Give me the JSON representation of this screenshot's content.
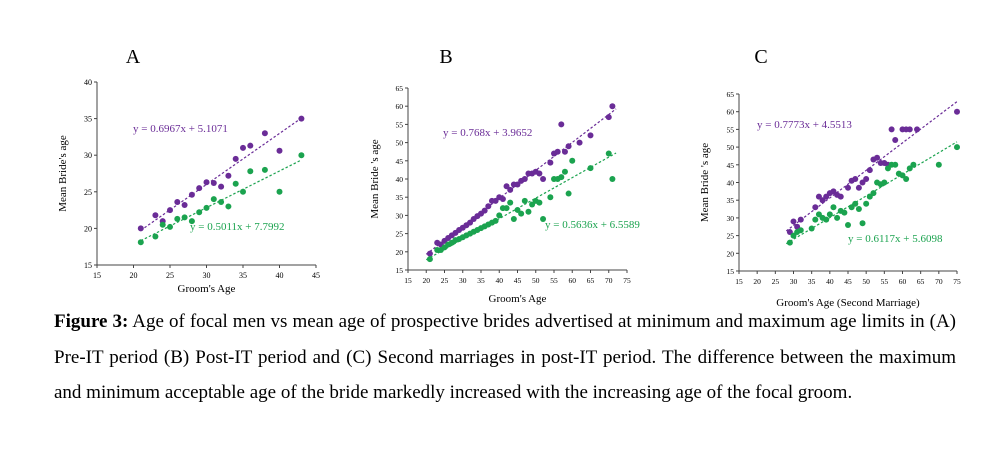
{
  "chart_data": [
    {
      "type": "scatter",
      "panel_label": "A",
      "xlabel": "Groom's Age",
      "ylabel": "Mean Bride's age",
      "xlim": [
        15,
        45
      ],
      "ylim": [
        15,
        40
      ],
      "xticks": [
        15,
        20,
        25,
        30,
        35,
        40,
        45
      ],
      "yticks": [
        15,
        20,
        25,
        30,
        35,
        40
      ],
      "series": [
        {
          "role": "maximum",
          "color": "#6a2c97",
          "equation": "y = 0.6967x + 5.1071",
          "slope": 0.6967,
          "intercept": 5.1071,
          "fit_x": [
            21,
            43
          ],
          "points": [
            [
              21,
              20
            ],
            [
              23,
              21.8
            ],
            [
              24,
              21
            ],
            [
              25,
              22.5
            ],
            [
              26,
              23.6
            ],
            [
              27,
              23.2
            ],
            [
              28,
              24.6
            ],
            [
              29,
              25.5
            ],
            [
              30,
              26.3
            ],
            [
              31,
              26.2
            ],
            [
              32,
              25.7
            ],
            [
              33,
              27.2
            ],
            [
              34,
              29.5
            ],
            [
              35,
              31
            ],
            [
              36,
              31.3
            ],
            [
              38,
              33
            ],
            [
              40,
              30.6
            ],
            [
              43,
              35
            ]
          ]
        },
        {
          "role": "minimum",
          "color": "#1ba34f",
          "equation": "y = 0.5011x + 7.7992",
          "slope": 0.5011,
          "intercept": 7.7992,
          "fit_x": [
            21,
            43
          ],
          "points": [
            [
              21,
              18.1
            ],
            [
              23,
              18.9
            ],
            [
              24,
              20.5
            ],
            [
              25,
              20.2
            ],
            [
              26,
              21.3
            ],
            [
              27,
              21.5
            ],
            [
              28,
              21
            ],
            [
              29,
              22.2
            ],
            [
              30,
              22.8
            ],
            [
              31,
              24
            ],
            [
              32,
              23.6
            ],
            [
              33,
              23
            ],
            [
              34,
              26.1
            ],
            [
              35,
              25
            ],
            [
              36,
              27.8
            ],
            [
              38,
              28
            ],
            [
              40,
              25
            ],
            [
              43,
              30
            ]
          ]
        }
      ]
    },
    {
      "type": "scatter",
      "panel_label": "B",
      "xlabel": "Groom's Age",
      "ylabel": "Mean Bride 's age",
      "xlim": [
        15,
        75
      ],
      "ylim": [
        15,
        65
      ],
      "xticks": [
        15,
        20,
        25,
        30,
        35,
        40,
        45,
        50,
        55,
        60,
        65,
        70,
        75
      ],
      "yticks": [
        15,
        20,
        25,
        30,
        35,
        40,
        45,
        50,
        55,
        60,
        65
      ],
      "series": [
        {
          "role": "maximum",
          "color": "#6a2c97",
          "equation": "y = 0.768x + 3.9652",
          "slope": 0.768,
          "intercept": 3.9652,
          "fit_x": [
            20,
            72
          ],
          "points": [
            [
              21,
              19.5
            ],
            [
              23,
              22.5
            ],
            [
              24,
              22
            ],
            [
              25,
              23
            ],
            [
              26,
              23.8
            ],
            [
              27,
              24.5
            ],
            [
              28,
              25.2
            ],
            [
              29,
              26
            ],
            [
              30,
              26.6
            ],
            [
              31,
              27.3
            ],
            [
              32,
              28
            ],
            [
              33,
              29
            ],
            [
              34,
              29.8
            ],
            [
              35,
              30.5
            ],
            [
              36,
              31.3
            ],
            [
              37,
              32.5
            ],
            [
              38,
              34
            ],
            [
              39,
              34
            ],
            [
              40,
              35
            ],
            [
              41,
              34.5
            ],
            [
              42,
              38
            ],
            [
              43,
              37
            ],
            [
              44,
              38.5
            ],
            [
              45,
              38.5
            ],
            [
              46,
              39.5
            ],
            [
              47,
              40
            ],
            [
              48,
              41.5
            ],
            [
              49,
              41.5
            ],
            [
              50,
              42
            ],
            [
              51,
              41.5
            ],
            [
              52,
              40
            ],
            [
              54,
              44.5
            ],
            [
              55,
              47
            ],
            [
              56,
              47.5
            ],
            [
              57,
              55
            ],
            [
              58,
              47.5
            ],
            [
              59,
              49
            ],
            [
              62,
              50
            ],
            [
              65,
              52
            ],
            [
              70,
              57
            ],
            [
              71,
              60
            ]
          ]
        },
        {
          "role": "minimum",
          "color": "#1ba34f",
          "equation": "y = 0.5636x + 6.5589",
          "slope": 0.5636,
          "intercept": 6.5589,
          "fit_x": [
            20,
            72
          ],
          "points": [
            [
              21,
              18
            ],
            [
              23,
              20.5
            ],
            [
              24,
              20.5
            ],
            [
              25,
              21.2
            ],
            [
              26,
              22
            ],
            [
              27,
              22.5
            ],
            [
              28,
              23.2
            ],
            [
              29,
              23.5
            ],
            [
              30,
              24
            ],
            [
              31,
              24.5
            ],
            [
              32,
              25
            ],
            [
              33,
              25.5
            ],
            [
              34,
              26
            ],
            [
              35,
              26.5
            ],
            [
              36,
              27
            ],
            [
              37,
              27.5
            ],
            [
              38,
              28
            ],
            [
              39,
              28.5
            ],
            [
              40,
              30
            ],
            [
              41,
              32
            ],
            [
              42,
              32
            ],
            [
              43,
              33.5
            ],
            [
              44,
              29
            ],
            [
              45,
              31.5
            ],
            [
              46,
              30.5
            ],
            [
              47,
              34
            ],
            [
              48,
              31
            ],
            [
              49,
              33
            ],
            [
              50,
              34
            ],
            [
              51,
              33.5
            ],
            [
              52,
              29
            ],
            [
              54,
              35
            ],
            [
              55,
              40
            ],
            [
              56,
              40
            ],
            [
              57,
              40.5
            ],
            [
              58,
              42
            ],
            [
              59,
              36
            ],
            [
              60,
              45
            ],
            [
              65,
              43
            ],
            [
              70,
              47
            ],
            [
              71,
              40
            ]
          ]
        }
      ]
    },
    {
      "type": "scatter",
      "panel_label": "C",
      "xlabel": "Groom's Age (Second Marriage)",
      "ylabel": "Mean Bride 's age",
      "xlim": [
        15,
        75
      ],
      "ylim": [
        15,
        65
      ],
      "xticks": [
        15,
        20,
        25,
        30,
        35,
        40,
        45,
        50,
        55,
        60,
        65,
        70,
        75
      ],
      "yticks": [
        15,
        20,
        25,
        30,
        35,
        40,
        45,
        50,
        55,
        60,
        65
      ],
      "series": [
        {
          "role": "maximum",
          "color": "#6a2c97",
          "equation": "y = 0.7773x + 4.5513",
          "slope": 0.7773,
          "intercept": 4.5513,
          "fit_x": [
            28,
            75
          ],
          "points": [
            [
              29,
              26
            ],
            [
              30,
              29
            ],
            [
              31,
              27.5
            ],
            [
              32,
              29.5
            ],
            [
              36,
              33
            ],
            [
              37,
              36
            ],
            [
              38,
              35
            ],
            [
              39,
              36
            ],
            [
              40,
              37
            ],
            [
              41,
              37.5
            ],
            [
              42,
              36.5
            ],
            [
              43,
              36
            ],
            [
              45,
              38.5
            ],
            [
              46,
              40.5
            ],
            [
              47,
              41
            ],
            [
              48,
              38.5
            ],
            [
              49,
              40
            ],
            [
              50,
              41
            ],
            [
              51,
              43.5
            ],
            [
              52,
              46.5
            ],
            [
              53,
              47
            ],
            [
              54,
              45.5
            ],
            [
              55,
              45.5
            ],
            [
              56,
              45
            ],
            [
              57,
              55
            ],
            [
              58,
              52
            ],
            [
              60,
              55
            ],
            [
              61,
              55
            ],
            [
              62,
              55
            ],
            [
              64,
              55
            ],
            [
              75,
              60
            ]
          ]
        },
        {
          "role": "minimum",
          "color": "#1ba34f",
          "equation": "y = 0.6117x + 5.6098",
          "slope": 0.6117,
          "intercept": 5.6098,
          "fit_x": [
            28,
            75
          ],
          "points": [
            [
              29,
              23
            ],
            [
              30,
              25
            ],
            [
              31,
              26
            ],
            [
              32,
              26.5
            ],
            [
              35,
              27
            ],
            [
              36,
              29.5
            ],
            [
              37,
              31
            ],
            [
              38,
              30
            ],
            [
              39,
              29.5
            ],
            [
              40,
              31
            ],
            [
              41,
              33
            ],
            [
              42,
              30
            ],
            [
              43,
              32
            ],
            [
              44,
              31.5
            ],
            [
              45,
              28
            ],
            [
              46,
              33
            ],
            [
              47,
              34
            ],
            [
              48,
              32.5
            ],
            [
              49,
              28.5
            ],
            [
              50,
              34
            ],
            [
              51,
              36
            ],
            [
              52,
              37
            ],
            [
              53,
              40
            ],
            [
              54,
              39.5
            ],
            [
              55,
              40
            ],
            [
              56,
              44
            ],
            [
              57,
              45
            ],
            [
              58,
              45
            ],
            [
              59,
              42.5
            ],
            [
              60,
              42
            ],
            [
              61,
              41
            ],
            [
              62,
              44
            ],
            [
              63,
              45
            ],
            [
              70,
              45
            ],
            [
              75,
              50
            ]
          ]
        }
      ]
    }
  ],
  "caption": {
    "lead": "Figure 3:",
    "text": " Age of focal men vs mean age of prospective brides advertised at minimum and maximum age limits in (A) Pre-IT period (B) Post-IT period and (C) Second marriages in post-IT period. The difference between the maximum and minimum acceptable age of the bride markedly increased with the increasing age of the focal groom."
  }
}
